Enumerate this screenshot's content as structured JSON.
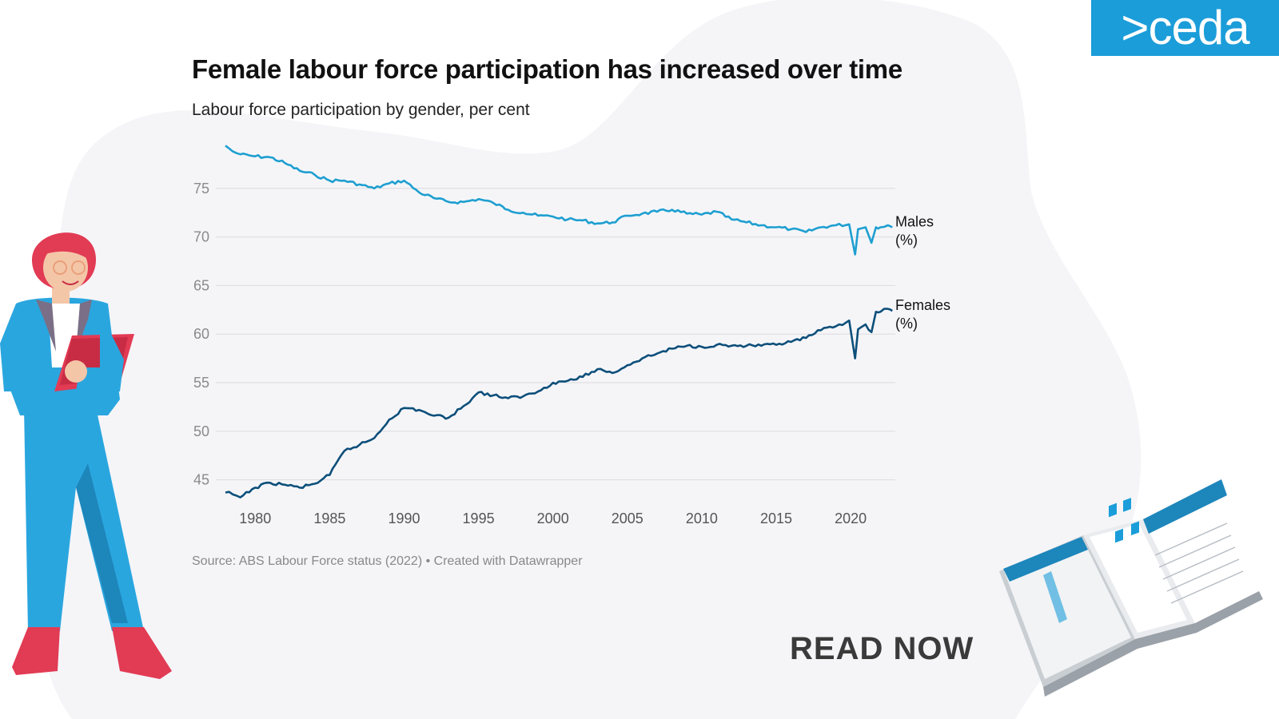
{
  "brand": {
    "logo_text": ">ceda",
    "accent": "#1b9dd9"
  },
  "title": "Female labour force participation has increased over time",
  "subtitle": "Labour force participation by gender, per cent",
  "source": "Source: ABS Labour Force status (2022) • Created with Datawrapper",
  "cta": {
    "label": "READ NOW"
  },
  "chart_data": {
    "type": "line",
    "title": "Female labour force participation has increased over time",
    "subtitle": "Labour force participation by gender, per cent",
    "xlabel": "",
    "ylabel": "",
    "ylim": [
      43,
      80
    ],
    "xlim": [
      1978,
      2023
    ],
    "yticks": [
      45,
      50,
      55,
      60,
      65,
      70,
      75
    ],
    "xticks": [
      1980,
      1985,
      1990,
      1995,
      2000,
      2005,
      2010,
      2015,
      2020
    ],
    "grid": true,
    "series": [
      {
        "name": "Males (%)",
        "color": "#1e9fd0",
        "x": [
          1978.0,
          1978.5,
          1979.0,
          1980.0,
          1981.0,
          1982.0,
          1983.0,
          1984.0,
          1985.0,
          1986.0,
          1987.0,
          1988.0,
          1989.0,
          1990.0,
          1991.0,
          1992.0,
          1993.0,
          1994.0,
          1995.0,
          1996.0,
          1997.0,
          1998.0,
          1999.0,
          2000.0,
          2001.0,
          2002.0,
          2003.0,
          2004.0,
          2005.0,
          2006.0,
          2007.0,
          2008.0,
          2009.0,
          2010.0,
          2011.0,
          2012.0,
          2013.0,
          2014.0,
          2015.0,
          2016.0,
          2017.0,
          2018.0,
          2019.0,
          2019.9,
          2020.3,
          2020.5,
          2021.0,
          2021.4,
          2021.7,
          2022.0,
          2022.5,
          2022.8
        ],
        "y": [
          79.4,
          78.8,
          78.5,
          78.3,
          78.2,
          77.6,
          76.8,
          76.4,
          75.8,
          75.8,
          75.4,
          75.0,
          75.5,
          75.8,
          74.6,
          74.0,
          73.6,
          73.6,
          73.9,
          73.5,
          72.8,
          72.5,
          72.2,
          72.1,
          71.8,
          71.7,
          71.4,
          71.5,
          72.2,
          72.4,
          72.6,
          72.8,
          72.4,
          72.3,
          72.6,
          71.8,
          71.5,
          71.2,
          71.0,
          70.8,
          70.5,
          71.0,
          71.2,
          71.3,
          68.2,
          70.8,
          71.0,
          69.4,
          71.0,
          71.0,
          71.2,
          71.0
        ]
      },
      {
        "name": "Females (%)",
        "color": "#0d4f7a",
        "x": [
          1978.0,
          1978.5,
          1979.0,
          1980.0,
          1981.0,
          1982.0,
          1983.0,
          1984.0,
          1985.0,
          1986.0,
          1987.0,
          1988.0,
          1989.0,
          1990.0,
          1991.0,
          1992.0,
          1993.0,
          1994.0,
          1995.0,
          1996.0,
          1997.0,
          1998.0,
          1999.0,
          2000.0,
          2001.0,
          2002.0,
          2003.0,
          2004.0,
          2005.0,
          2006.0,
          2007.0,
          2008.0,
          2009.0,
          2010.0,
          2011.0,
          2012.0,
          2013.0,
          2014.0,
          2015.0,
          2016.0,
          2017.0,
          2018.0,
          2019.0,
          2019.9,
          2020.3,
          2020.5,
          2021.0,
          2021.4,
          2021.7,
          2022.0,
          2022.5,
          2022.8
        ],
        "y": [
          43.7,
          43.5,
          43.2,
          44.2,
          44.7,
          44.5,
          44.2,
          44.6,
          45.5,
          48.0,
          48.6,
          49.3,
          51.2,
          52.4,
          52.2,
          51.6,
          51.4,
          52.6,
          54.0,
          53.7,
          53.4,
          53.6,
          54.1,
          55.0,
          55.2,
          55.6,
          56.4,
          56.0,
          56.8,
          57.5,
          58.0,
          58.5,
          58.8,
          58.7,
          58.9,
          58.8,
          58.8,
          58.8,
          58.9,
          59.2,
          59.6,
          60.4,
          60.8,
          61.4,
          57.5,
          60.5,
          61.0,
          60.2,
          62.3,
          62.3,
          62.6,
          62.4
        ]
      }
    ],
    "series_labels": [
      {
        "lines": [
          "Males",
          "(%)"
        ]
      },
      {
        "lines": [
          "Females",
          "(%)"
        ]
      }
    ]
  }
}
